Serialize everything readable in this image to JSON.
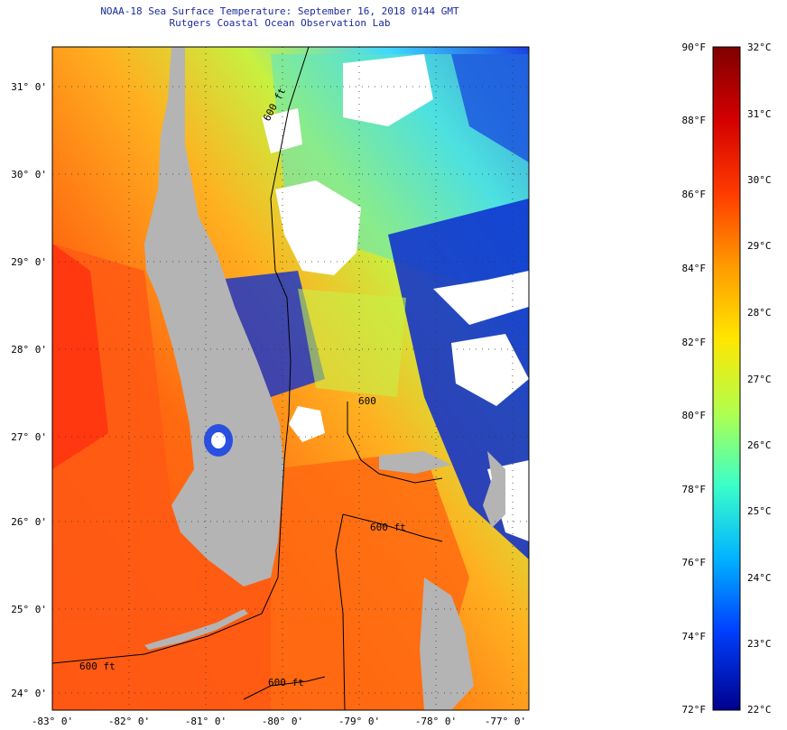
{
  "title": {
    "line1": "NOAA-18 Sea Surface Temperature:  September 16, 2018 0144 GMT",
    "line2": "Rutgers Coastal Ocean Observation Lab"
  },
  "map": {
    "lat_labels": [
      "31° 0'",
      "30° 0'",
      "29° 0'",
      "28° 0'",
      "27° 0'",
      "26° 0'",
      "25° 0'",
      "24° 0'"
    ],
    "lon_labels": [
      "-83° 0'",
      "-82° 0'",
      "-81° 0'",
      "-80° 0'",
      "-79° 0'",
      "-78° 0'",
      "-77° 0'"
    ],
    "contour_labels": [
      "600 ft",
      "600",
      "600 ft",
      "600 ft",
      "600 ft"
    ],
    "colors": {
      "land": "#b4b4b4",
      "cloud": "#ffffff",
      "frame": "#000000"
    }
  },
  "colorbar": {
    "fahrenheit": [
      "90°F",
      "88°F",
      "86°F",
      "84°F",
      "82°F",
      "80°F",
      "78°F",
      "76°F",
      "74°F",
      "72°F"
    ],
    "celsius": [
      "32°C",
      "31°C",
      "30°C",
      "29°C",
      "28°C",
      "27°C",
      "26°C",
      "25°C",
      "24°C",
      "23°C",
      "22°C"
    ],
    "stops": [
      "#800000",
      "#d40000",
      "#ff3a00",
      "#ff9a00",
      "#ffe600",
      "#b2ff4c",
      "#3cffc8",
      "#00b4ff",
      "#0040ff",
      "#00008c"
    ]
  }
}
